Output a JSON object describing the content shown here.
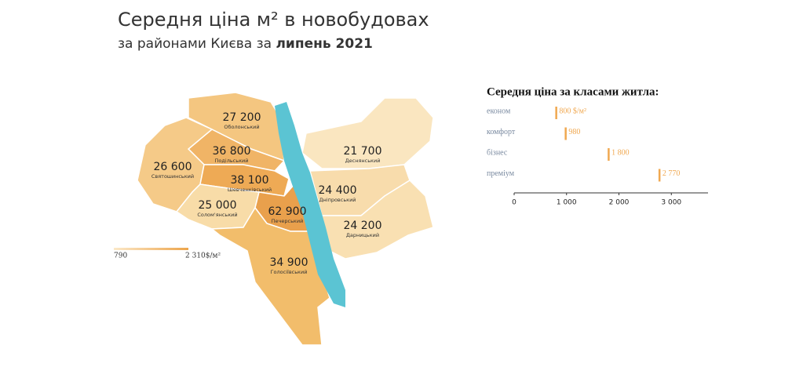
{
  "header": {
    "title": "Середня ціна м² в новобудовах",
    "subtitle_prefix": "за районами Києва за",
    "subtitle_bold": "липень 2021"
  },
  "map": {
    "districts": [
      {
        "name": "Оболонський",
        "value": 27200,
        "label": "27 200",
        "color": "#f4c680"
      },
      {
        "name": "Подільський",
        "value": 36800,
        "label": "36 800",
        "color": "#f0b466"
      },
      {
        "name": "Святошинський",
        "value": 26600,
        "label": "26 600",
        "color": "#f5ca88"
      },
      {
        "name": "Шевченківський",
        "value": 38100,
        "label": "38 100",
        "color": "#eeaa55"
      },
      {
        "name": "Солом'янський",
        "value": 25000,
        "label": "25 000",
        "color": "#f8dca8"
      },
      {
        "name": "Печерський",
        "value": 62900,
        "label": "62 900",
        "color": "#e9a04c"
      },
      {
        "name": "Голосіївський",
        "value": 34900,
        "label": "34 900",
        "color": "#f2bd6b"
      },
      {
        "name": "Деснянський",
        "value": 21700,
        "label": "21 700",
        "color": "#fae6c0"
      },
      {
        "name": "Дніпровський",
        "value": 24400,
        "label": "24 400",
        "color": "#f8dcac"
      },
      {
        "name": "Дарницький",
        "value": 24200,
        "label": "24 200",
        "color": "#f9e0b2"
      }
    ],
    "river_color": "#5bc4d3",
    "legend": {
      "min": {
        "value": 790,
        "label": "790"
      },
      "max": {
        "value": 2310,
        "label": "2 310$/м²"
      },
      "colors": [
        "#fbe8c8",
        "#eda54c"
      ]
    }
  },
  "chart_data": {
    "type": "tick",
    "title": "Середня ціна за класами житла:",
    "categories": [
      "економ",
      "комфорт",
      "бізнес",
      "преміум"
    ],
    "values": [
      800,
      980,
      1800,
      2770
    ],
    "value_labels": [
      "800 $/м²",
      "980",
      "1 800",
      "2 770"
    ],
    "color": "#f0a850",
    "xlim": [
      0,
      3700
    ],
    "xticks": [
      0,
      {
        "value": 1000,
        "label": "1 000"
      },
      {
        "value": 2000,
        "label": "2 000"
      },
      {
        "value": 3000,
        "label": "3 000"
      }
    ]
  }
}
